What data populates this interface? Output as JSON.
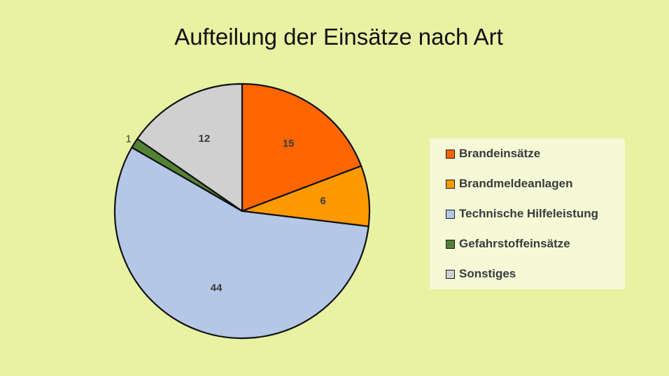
{
  "chart_data": {
    "type": "pie",
    "title": "Aufteilung der Einsätze nach Art",
    "slices": [
      {
        "label": "Brandeinsätze",
        "value": 15,
        "color": "#ff6600"
      },
      {
        "label": "Brandmeldeanlagen",
        "value": 6,
        "color": "#ff9900"
      },
      {
        "label": "Technische Hilfeleistung",
        "value": 44,
        "color": "#b4c7e7"
      },
      {
        "label": "Gefahrstoffeinsätze",
        "value": 1,
        "color": "#548235"
      },
      {
        "label": "Sonstiges",
        "value": 12,
        "color": "#d0d0d0"
      }
    ],
    "legend_position": "right",
    "data_labels": true
  }
}
